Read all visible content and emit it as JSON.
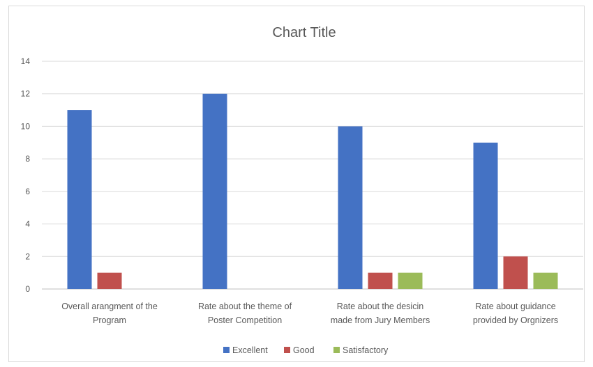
{
  "chart_data": {
    "type": "bar",
    "title": "Chart Title",
    "xlabel": "",
    "ylabel": "",
    "ylim": [
      0,
      14
    ],
    "yticks": [
      0,
      2,
      4,
      6,
      8,
      10,
      12,
      14
    ],
    "grid": true,
    "legend_position": "bottom",
    "categories": [
      [
        "Overall arangment of the",
        "Program"
      ],
      [
        "Rate about the theme of",
        "Poster Competition"
      ],
      [
        "Rate about the desicin",
        "made from Jury Members"
      ],
      [
        "Rate about guidance",
        "provided by Orgnizers"
      ]
    ],
    "series": [
      {
        "name": "Excellent",
        "color": "#4472c4",
        "values": [
          11,
          12,
          10,
          9
        ]
      },
      {
        "name": "Good",
        "color": "#c0504d",
        "values": [
          1,
          0,
          1,
          2
        ]
      },
      {
        "name": "Satisfactory",
        "color": "#9bbb59",
        "values": [
          0,
          0,
          1,
          1
        ]
      }
    ]
  }
}
